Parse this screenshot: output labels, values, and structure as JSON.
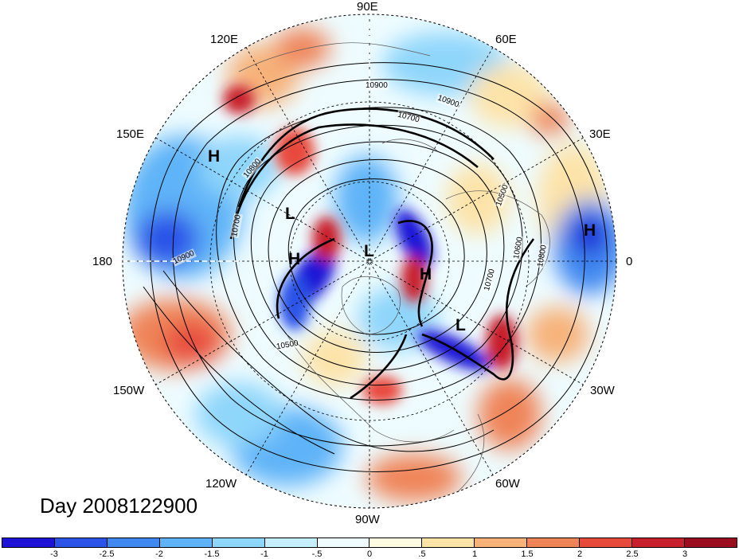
{
  "longitude_labels": [
    {
      "id": "90e",
      "text": "90E"
    },
    {
      "id": "60e",
      "text": "60E"
    },
    {
      "id": "30e",
      "text": "30E"
    },
    {
      "id": "0",
      "text": "0"
    },
    {
      "id": "30w",
      "text": "30W"
    },
    {
      "id": "60w",
      "text": "60W"
    },
    {
      "id": "90w",
      "text": "90W"
    },
    {
      "id": "120w",
      "text": "120W"
    },
    {
      "id": "150w",
      "text": "150W"
    },
    {
      "id": "180",
      "text": "180"
    },
    {
      "id": "150e",
      "text": "150E"
    },
    {
      "id": "120e",
      "text": "120E"
    }
  ],
  "pressure_centers": [
    {
      "id": "h-siberia",
      "text": "H"
    },
    {
      "id": "l-north-asia",
      "text": "L"
    },
    {
      "id": "h-pacific",
      "text": "H"
    },
    {
      "id": "l-pole",
      "text": "L"
    },
    {
      "id": "h-atlantic",
      "text": "H"
    },
    {
      "id": "l-atlantic",
      "text": "L"
    },
    {
      "id": "h-africa",
      "text": "H"
    }
  ],
  "contour_values": [
    {
      "id": "c1",
      "text": "10900"
    },
    {
      "id": "c2",
      "text": "10900"
    },
    {
      "id": "c3",
      "text": "10700"
    },
    {
      "id": "c4",
      "text": "10500"
    },
    {
      "id": "c5",
      "text": "10600"
    },
    {
      "id": "c6",
      "text": "10700"
    },
    {
      "id": "c7",
      "text": "10800"
    },
    {
      "id": "c8",
      "text": "10900"
    },
    {
      "id": "c9",
      "text": "10500"
    },
    {
      "id": "c10",
      "text": "10800"
    },
    {
      "id": "c11",
      "text": "10700"
    }
  ],
  "day_label": "Day 2008122900",
  "colorbar": {
    "colors": [
      "#1e12d6",
      "#2b53e8",
      "#3f88f0",
      "#5fb3f8",
      "#8fd6fb",
      "#c6f0fd",
      "#eefcff",
      "#fffbe0",
      "#fde3a8",
      "#f7b27a",
      "#ef8458",
      "#e84a3c",
      "#c81f2c",
      "#9a0d1e"
    ],
    "ticks": [
      "-3",
      "-2.5",
      "-2",
      "-1.5",
      "-1",
      "-.5",
      "0",
      ".5",
      "1",
      "1.5",
      "2",
      "2.5",
      "3"
    ]
  }
}
